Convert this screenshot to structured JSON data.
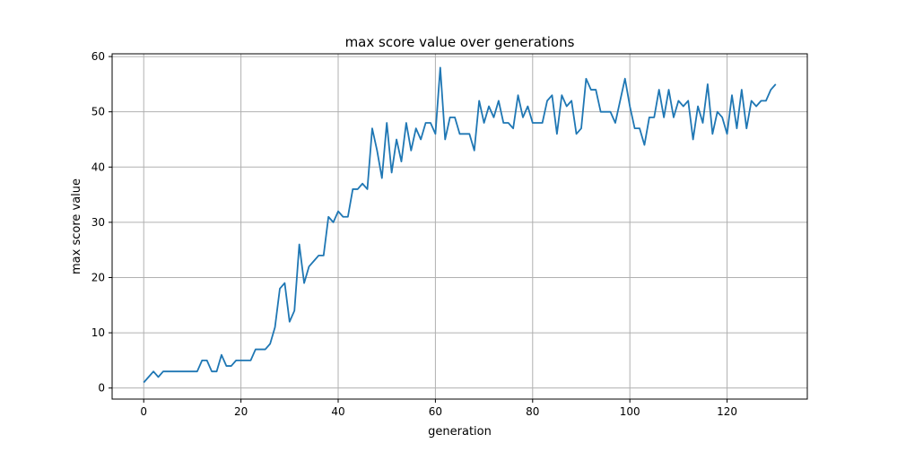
{
  "chart_data": {
    "type": "line",
    "title": "max score value over generations",
    "xlabel": "generation",
    "ylabel": "max score value",
    "xlim": [
      -6.5,
      136.5
    ],
    "ylim": [
      -2,
      60.5
    ],
    "xticks": [
      0,
      20,
      40,
      60,
      80,
      100,
      120
    ],
    "yticks": [
      0,
      10,
      20,
      30,
      40,
      50,
      60
    ],
    "xtick_labels": [
      "0",
      "20",
      "40",
      "60",
      "80",
      "100",
      "120"
    ],
    "ytick_labels": [
      "0",
      "10",
      "20",
      "30",
      "40",
      "50",
      "60"
    ],
    "grid": true,
    "series": [
      {
        "color": "#1f77b4",
        "x": [
          0,
          1,
          2,
          3,
          4,
          5,
          6,
          7,
          8,
          9,
          10,
          11,
          12,
          13,
          14,
          15,
          16,
          17,
          18,
          19,
          20,
          21,
          22,
          23,
          24,
          25,
          26,
          27,
          28,
          29,
          30,
          31,
          32,
          33,
          34,
          35,
          36,
          37,
          38,
          39,
          40,
          41,
          42,
          43,
          44,
          45,
          46,
          47,
          48,
          49,
          50,
          51,
          52,
          53,
          54,
          55,
          56,
          57,
          58,
          59,
          60,
          61,
          62,
          63,
          64,
          65,
          66,
          67,
          68,
          69,
          70,
          71,
          72,
          73,
          74,
          75,
          76,
          77,
          78,
          79,
          80,
          81,
          82,
          83,
          84,
          85,
          86,
          87,
          88,
          89,
          90,
          91,
          92,
          93,
          94,
          95,
          96,
          97,
          98,
          99,
          100,
          101,
          102,
          103,
          104,
          105,
          106,
          107,
          108,
          109,
          110,
          111,
          112,
          113,
          114,
          115,
          116,
          117,
          118,
          119,
          120,
          121,
          122,
          123,
          124,
          125,
          126,
          127,
          128,
          129,
          130
        ],
        "y": [
          1,
          2,
          3,
          2,
          3,
          3,
          3,
          3,
          3,
          3,
          3,
          3,
          5,
          5,
          3,
          3,
          6,
          4,
          4,
          5,
          5,
          5,
          5,
          7,
          7,
          7,
          8,
          11,
          18,
          19,
          12,
          14,
          26,
          19,
          22,
          23,
          24,
          24,
          31,
          30,
          32,
          31,
          31,
          36,
          36,
          37,
          36,
          47,
          43,
          38,
          48,
          39,
          45,
          41,
          48,
          43,
          47,
          45,
          48,
          48,
          46,
          58,
          45,
          49,
          49,
          46,
          46,
          46,
          43,
          52,
          48,
          51,
          49,
          52,
          48,
          48,
          47,
          53,
          49,
          51,
          48,
          48,
          48,
          52,
          53,
          46,
          53,
          51,
          52,
          46,
          47,
          56,
          54,
          54,
          50,
          50,
          50,
          48,
          52,
          56,
          51,
          47,
          47,
          44,
          49,
          49,
          54,
          49,
          54,
          49,
          52,
          51,
          52,
          45,
          51,
          48,
          55,
          46,
          50,
          49,
          46,
          53,
          47,
          54,
          47,
          52,
          51,
          52,
          52,
          54,
          55
        ]
      }
    ]
  }
}
